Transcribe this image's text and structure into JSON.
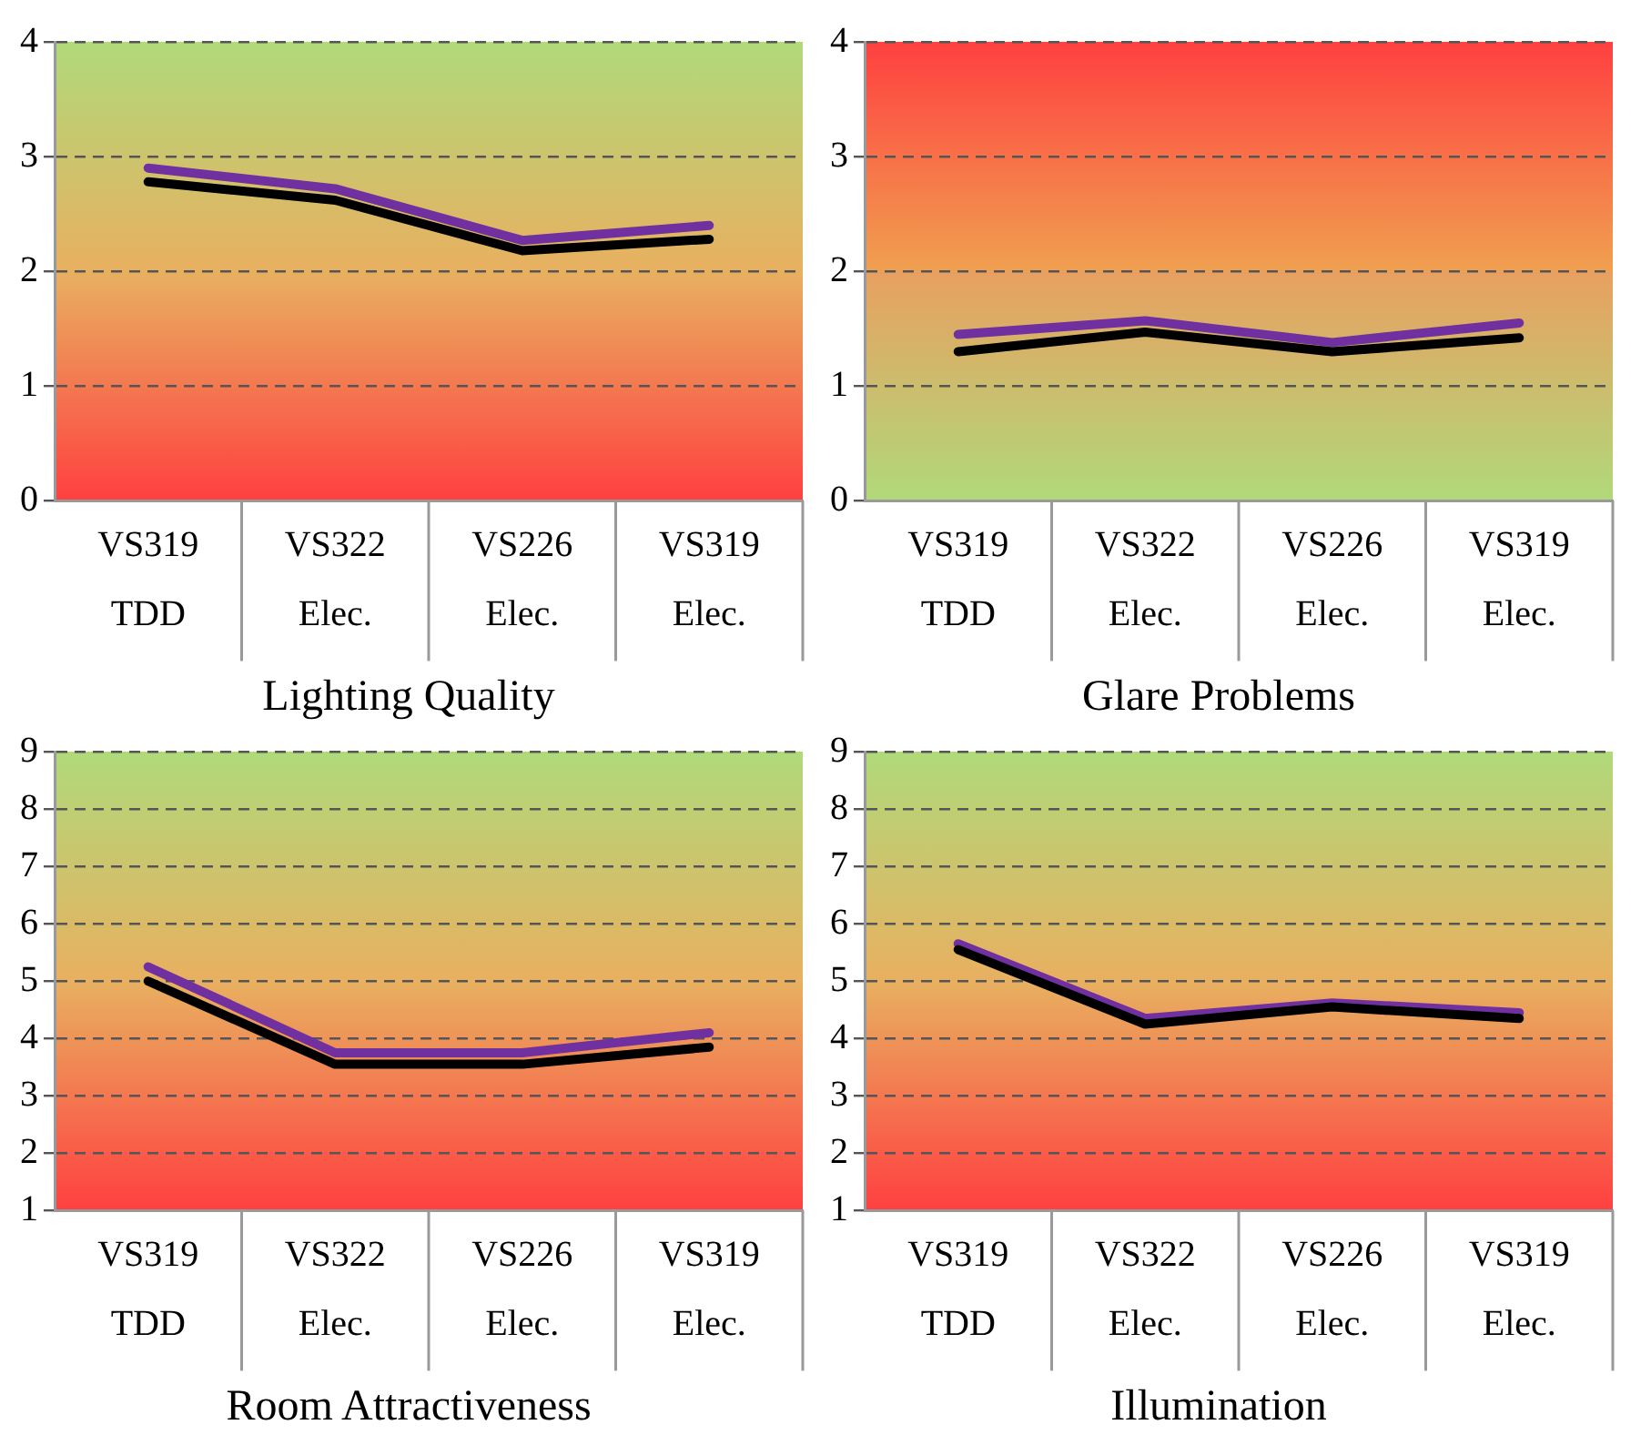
{
  "chart_data": [
    {
      "type": "line",
      "title": "Lighting Quality",
      "categories": [
        "VS319 TDD",
        "VS322 Elec.",
        "VS226 Elec.",
        "VS319 Elec."
      ],
      "ylim": [
        0,
        4
      ],
      "yticks": [
        0,
        1,
        2,
        3,
        4
      ],
      "grid": "y",
      "legend": false,
      "marker": "none",
      "line_style": "solid",
      "series": [
        {
          "color": "#000000",
          "values": [
            2.78,
            2.62,
            2.18,
            2.28
          ]
        },
        {
          "color": "#7030a0",
          "values": [
            2.9,
            2.72,
            2.27,
            2.4
          ]
        }
      ]
    },
    {
      "type": "line",
      "title": "Glare Problems",
      "categories": [
        "VS319 TDD",
        "VS322 Elec.",
        "VS226 Elec.",
        "VS319 Elec."
      ],
      "ylim": [
        0,
        4
      ],
      "yticks": [
        0,
        1,
        2,
        3,
        4
      ],
      "grid": "y",
      "legend": false,
      "marker": "none",
      "line_style": "solid",
      "series": [
        {
          "color": "#000000",
          "values": [
            1.3,
            1.47,
            1.3,
            1.42
          ]
        },
        {
          "color": "#7030a0",
          "values": [
            1.45,
            1.57,
            1.38,
            1.55
          ]
        }
      ]
    },
    {
      "type": "line",
      "title": "Room Attractiveness",
      "categories": [
        "VS319 TDD",
        "VS322 Elec.",
        "VS226 Elec.",
        "VS319 Elec."
      ],
      "ylim": [
        1,
        9
      ],
      "yticks": [
        1,
        2,
        3,
        4,
        5,
        6,
        7,
        8,
        9
      ],
      "grid": "y",
      "legend": false,
      "marker": "none",
      "line_style": "solid",
      "series": [
        {
          "color": "#000000",
          "values": [
            5.0,
            3.55,
            3.55,
            3.85
          ]
        },
        {
          "color": "#7030a0",
          "values": [
            5.25,
            3.75,
            3.75,
            4.1
          ]
        }
      ]
    },
    {
      "type": "line",
      "title": "Illumination",
      "categories": [
        "VS319 TDD",
        "VS322 Elec.",
        "VS226 Elec.",
        "VS319 Elec."
      ],
      "ylim": [
        1,
        9
      ],
      "yticks": [
        1,
        2,
        3,
        4,
        5,
        6,
        7,
        8,
        9
      ],
      "grid": "y",
      "legend": false,
      "marker": "none",
      "line_style": "solid",
      "series": [
        {
          "color": "#000000",
          "values": [
            5.55,
            4.25,
            4.55,
            4.35
          ]
        },
        {
          "color": "#7030a0",
          "values": [
            5.65,
            4.35,
            4.62,
            4.45
          ]
        }
      ]
    }
  ]
}
